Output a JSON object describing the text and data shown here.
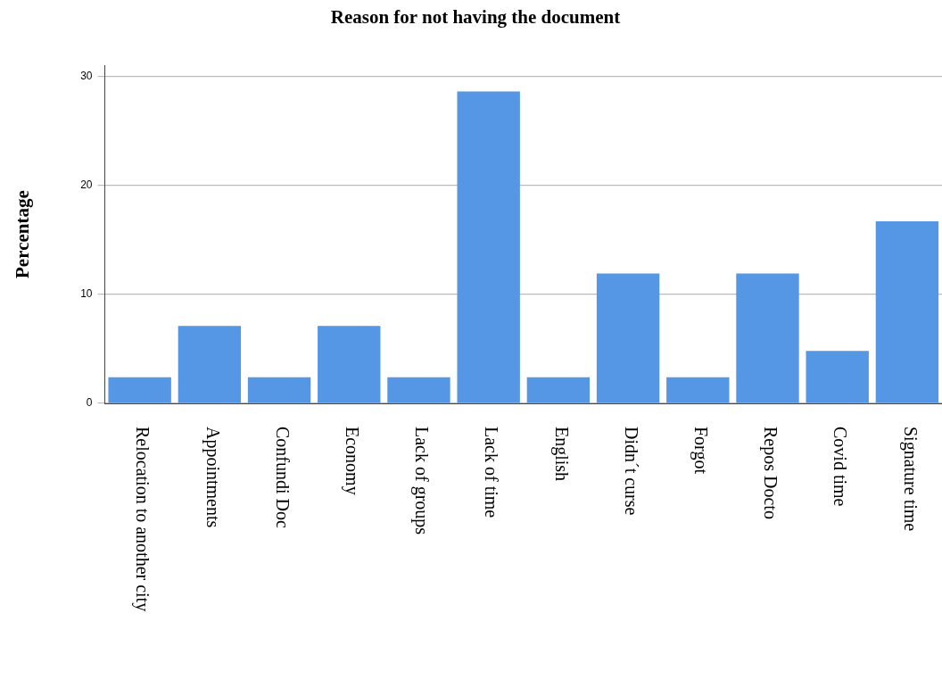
{
  "chart_data": {
    "type": "bar",
    "title": "Reason for not having the document",
    "ylabel": "Percentage",
    "categories": [
      "Relocation to another city",
      "Appointments",
      "Confundi Doc",
      "Economy",
      "Lack of groups",
      "Lack of time",
      "English",
      "Didn´t curse",
      "Forgot",
      "Repos Docto",
      "Covid time",
      "Signature time"
    ],
    "values": [
      2.4,
      7.1,
      2.4,
      7.1,
      2.4,
      28.6,
      2.4,
      11.9,
      2.4,
      11.9,
      4.8,
      16.7
    ],
    "color": "#5596e5",
    "ylim": [
      0,
      31
    ],
    "yticks": [
      0,
      10,
      20,
      30
    ],
    "grid": "y",
    "legend": false
  }
}
